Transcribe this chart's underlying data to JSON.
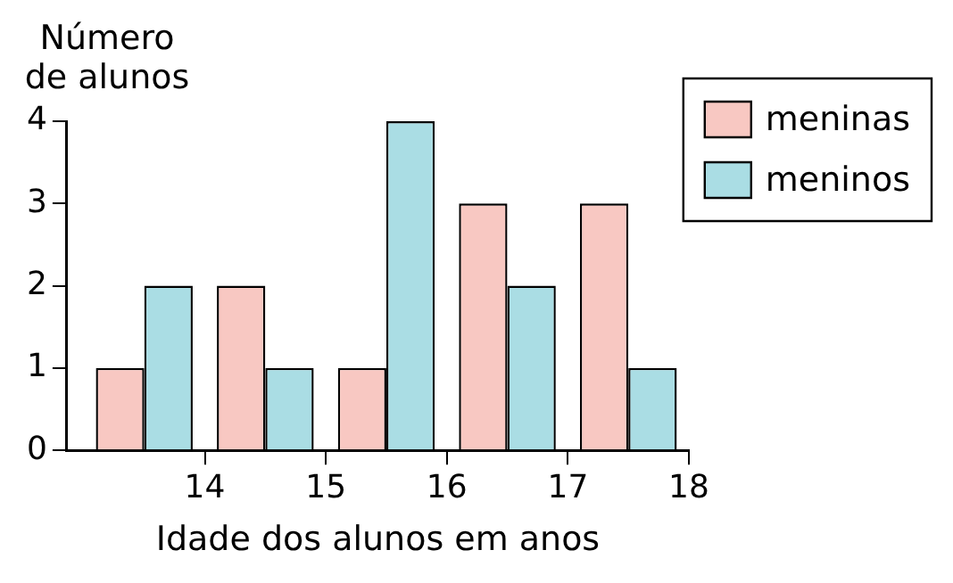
{
  "chart_data": {
    "type": "bar",
    "xlabel": "Idade dos alunos em anos",
    "ylabel": "Número de alunos",
    "x": [
      13.5,
      14.5,
      15.5,
      16.5,
      17.5
    ],
    "series": [
      {
        "name": "meninas",
        "color": "#f8c8c2",
        "values": [
          1,
          2,
          1,
          3,
          3
        ]
      },
      {
        "name": "meninos",
        "color": "#aadde4",
        "values": [
          2,
          1,
          4,
          2,
          1
        ]
      }
    ],
    "xlim": [
      12.86,
      18
    ],
    "xticks": [
      14,
      15,
      16,
      17,
      18
    ],
    "ylim": [
      0,
      4
    ],
    "yticks": [
      0,
      1,
      2,
      3,
      4
    ],
    "grid": false,
    "legend": "top right"
  }
}
